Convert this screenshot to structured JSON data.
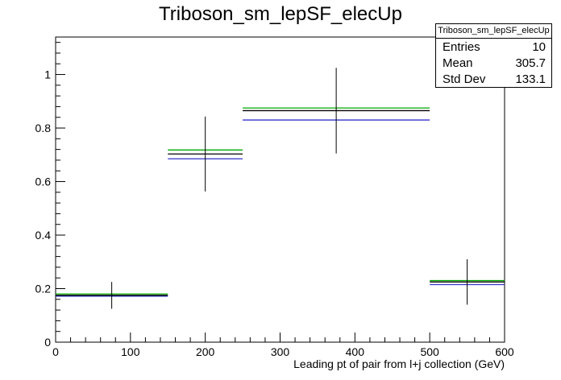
{
  "title": "Triboson_sm_lepSF_elecUp",
  "stats": {
    "name": "Triboson_sm_lepSF_elecUp",
    "entries_label": "Entries",
    "entries_value": "10",
    "mean_label": "Mean",
    "mean_value": "305.7",
    "stddev_label": "Std Dev",
    "stddev_value": "133.1"
  },
  "chart_data": {
    "type": "histogram",
    "title": "Triboson_sm_lepSF_elecUp",
    "xlabel": "Leading pt of pair from l+j collection (GeV)",
    "ylabel": "",
    "xlim": [
      0,
      600
    ],
    "ylim": [
      0,
      1.14
    ],
    "x_ticks": [
      0,
      100,
      200,
      300,
      400,
      500,
      600
    ],
    "y_ticks": [
      0,
      0.2,
      0.4,
      0.6,
      0.8,
      1
    ],
    "bins": [
      {
        "x_low": 0,
        "x_high": 150,
        "center": 75
      },
      {
        "x_low": 150,
        "x_high": 250,
        "center": 200
      },
      {
        "x_low": 250,
        "x_high": 500,
        "center": 375
      },
      {
        "x_low": 500,
        "x_high": 600,
        "center": 550
      }
    ],
    "series": [
      {
        "color": "#000000",
        "values": [
          0.175,
          0.703,
          0.865,
          0.225
        ],
        "errors": [
          0.05,
          0.14,
          0.16,
          0.085
        ]
      },
      {
        "color": "#00aa00",
        "values": [
          0.18,
          0.718,
          0.875,
          0.23
        ]
      },
      {
        "color": "#3333cc",
        "values": [
          0.172,
          0.685,
          0.83,
          0.215
        ]
      }
    ]
  }
}
